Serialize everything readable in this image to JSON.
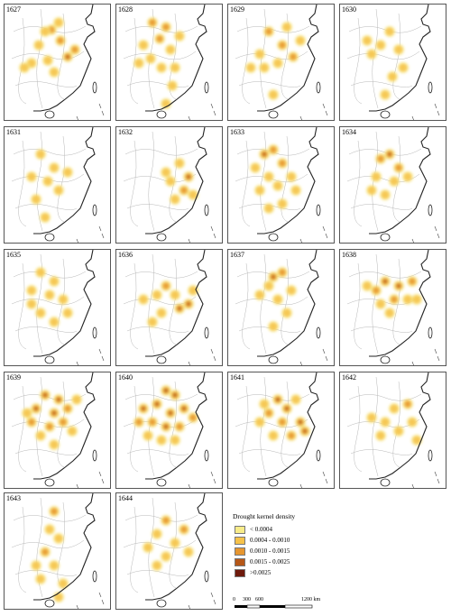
{
  "panels": [
    {
      "year": "1627",
      "hotspots": [
        [
          52,
          28,
          2
        ],
        [
          62,
          40,
          2
        ],
        [
          70,
          58,
          3
        ],
        [
          38,
          45,
          1
        ],
        [
          30,
          65,
          1
        ],
        [
          48,
          62,
          1
        ],
        [
          60,
          20,
          1
        ],
        [
          55,
          75,
          1
        ],
        [
          45,
          30,
          1
        ],
        [
          78,
          50,
          2
        ],
        [
          22,
          70,
          1
        ]
      ]
    },
    {
      "year": "1628",
      "hotspots": [
        [
          40,
          20,
          2
        ],
        [
          55,
          25,
          2
        ],
        [
          48,
          38,
          2
        ],
        [
          30,
          45,
          1
        ],
        [
          60,
          50,
          1
        ],
        [
          70,
          35,
          1
        ],
        [
          50,
          70,
          1
        ],
        [
          38,
          60,
          1
        ],
        [
          65,
          70,
          1
        ],
        [
          25,
          65,
          1
        ],
        [
          55,
          110,
          1
        ],
        [
          62,
          90,
          1
        ]
      ]
    },
    {
      "year": "1629",
      "hotspots": [
        [
          45,
          30,
          2
        ],
        [
          60,
          45,
          2
        ],
        [
          72,
          58,
          2
        ],
        [
          35,
          55,
          1
        ],
        [
          55,
          65,
          1
        ],
        [
          40,
          70,
          1
        ],
        [
          65,
          25,
          1
        ],
        [
          80,
          40,
          1
        ],
        [
          50,
          100,
          1
        ],
        [
          25,
          70,
          1
        ]
      ]
    },
    {
      "year": "1630",
      "hotspots": [
        [
          55,
          30,
          1
        ],
        [
          45,
          45,
          1
        ],
        [
          65,
          50,
          1
        ],
        [
          70,
          70,
          1
        ],
        [
          35,
          55,
          1
        ],
        [
          58,
          80,
          1
        ],
        [
          50,
          100,
          1
        ],
        [
          30,
          40,
          1
        ]
      ]
    },
    {
      "year": "1631",
      "hotspots": [
        [
          40,
          30,
          1
        ],
        [
          55,
          45,
          1
        ],
        [
          30,
          55,
          1
        ],
        [
          48,
          60,
          1
        ],
        [
          60,
          70,
          1
        ],
        [
          35,
          80,
          1
        ],
        [
          45,
          100,
          1
        ],
        [
          70,
          50,
          1
        ]
      ]
    },
    {
      "year": "1632",
      "hotspots": [
        [
          80,
          55,
          3
        ],
        [
          75,
          70,
          2
        ],
        [
          70,
          40,
          1
        ],
        [
          60,
          60,
          1
        ],
        [
          85,
          75,
          1
        ],
        [
          65,
          80,
          1
        ],
        [
          55,
          50,
          1
        ]
      ]
    },
    {
      "year": "1633",
      "hotspots": [
        [
          40,
          30,
          3
        ],
        [
          50,
          25,
          2
        ],
        [
          60,
          40,
          2
        ],
        [
          30,
          45,
          1
        ],
        [
          45,
          55,
          1
        ],
        [
          55,
          65,
          1
        ],
        [
          70,
          55,
          1
        ],
        [
          35,
          70,
          1
        ],
        [
          60,
          85,
          1
        ],
        [
          45,
          90,
          1
        ],
        [
          75,
          70,
          1
        ]
      ]
    },
    {
      "year": "1634",
      "hotspots": [
        [
          55,
          30,
          3
        ],
        [
          45,
          35,
          2
        ],
        [
          65,
          45,
          2
        ],
        [
          40,
          55,
          1
        ],
        [
          60,
          60,
          1
        ],
        [
          50,
          75,
          1
        ],
        [
          75,
          55,
          1
        ],
        [
          35,
          70,
          1
        ]
      ]
    },
    {
      "year": "1635",
      "hotspots": [
        [
          40,
          25,
          1
        ],
        [
          55,
          35,
          1
        ],
        [
          30,
          45,
          1
        ],
        [
          50,
          50,
          1
        ],
        [
          65,
          55,
          1
        ],
        [
          40,
          70,
          1
        ],
        [
          55,
          80,
          1
        ],
        [
          70,
          70,
          1
        ],
        [
          30,
          60,
          1
        ]
      ]
    },
    {
      "year": "1636",
      "hotspots": [
        [
          80,
          60,
          3
        ],
        [
          70,
          65,
          3
        ],
        [
          55,
          40,
          2
        ],
        [
          45,
          50,
          1
        ],
        [
          65,
          50,
          1
        ],
        [
          30,
          55,
          1
        ],
        [
          50,
          70,
          1
        ],
        [
          40,
          80,
          1
        ],
        [
          85,
          45,
          1
        ]
      ]
    },
    {
      "year": "1637",
      "hotspots": [
        [
          50,
          30,
          3
        ],
        [
          60,
          25,
          2
        ],
        [
          45,
          40,
          1
        ],
        [
          70,
          45,
          1
        ],
        [
          55,
          55,
          1
        ],
        [
          35,
          50,
          1
        ],
        [
          65,
          70,
          1
        ],
        [
          50,
          85,
          1
        ]
      ]
    },
    {
      "year": "1638",
      "hotspots": [
        [
          50,
          35,
          3
        ],
        [
          65,
          40,
          3
        ],
        [
          80,
          35,
          2
        ],
        [
          40,
          45,
          2
        ],
        [
          60,
          55,
          2
        ],
        [
          75,
          55,
          1
        ],
        [
          30,
          40,
          1
        ],
        [
          45,
          60,
          1
        ],
        [
          85,
          55,
          1
        ],
        [
          55,
          70,
          1
        ]
      ]
    },
    {
      "year": "1639",
      "hotspots": [
        [
          45,
          25,
          3
        ],
        [
          60,
          30,
          3
        ],
        [
          35,
          40,
          3
        ],
        [
          55,
          45,
          3
        ],
        [
          70,
          40,
          2
        ],
        [
          30,
          55,
          2
        ],
        [
          50,
          60,
          2
        ],
        [
          65,
          55,
          2
        ],
        [
          40,
          70,
          1
        ],
        [
          75,
          65,
          1
        ],
        [
          25,
          45,
          1
        ],
        [
          80,
          30,
          1
        ],
        [
          55,
          80,
          1
        ]
      ]
    },
    {
      "year": "1640",
      "hotspots": [
        [
          55,
          20,
          4
        ],
        [
          65,
          25,
          4
        ],
        [
          45,
          35,
          3
        ],
        [
          30,
          40,
          3
        ],
        [
          60,
          45,
          3
        ],
        [
          75,
          40,
          3
        ],
        [
          40,
          55,
          2
        ],
        [
          55,
          60,
          3
        ],
        [
          70,
          60,
          2
        ],
        [
          25,
          55,
          2
        ],
        [
          85,
          50,
          2
        ],
        [
          35,
          70,
          1
        ],
        [
          50,
          75,
          1
        ],
        [
          65,
          75,
          1
        ]
      ]
    },
    {
      "year": "1641",
      "hotspots": [
        [
          55,
          30,
          4
        ],
        [
          65,
          40,
          3
        ],
        [
          80,
          55,
          4
        ],
        [
          85,
          65,
          3
        ],
        [
          45,
          45,
          2
        ],
        [
          60,
          55,
          2
        ],
        [
          35,
          55,
          1
        ],
        [
          70,
          70,
          2
        ],
        [
          50,
          70,
          1
        ],
        [
          40,
          35,
          1
        ],
        [
          75,
          30,
          1
        ]
      ]
    },
    {
      "year": "1642",
      "hotspots": [
        [
          75,
          35,
          2
        ],
        [
          60,
          40,
          1
        ],
        [
          80,
          55,
          1
        ],
        [
          50,
          55,
          1
        ],
        [
          65,
          65,
          1
        ],
        [
          45,
          70,
          1
        ],
        [
          85,
          75,
          1
        ],
        [
          35,
          50,
          1
        ]
      ]
    },
    {
      "year": "1643",
      "hotspots": [
        [
          55,
          20,
          2
        ],
        [
          50,
          40,
          1
        ],
        [
          60,
          50,
          1
        ],
        [
          45,
          65,
          2
        ],
        [
          35,
          80,
          1
        ],
        [
          55,
          80,
          1
        ],
        [
          40,
          95,
          1
        ],
        [
          65,
          100,
          1
        ],
        [
          60,
          115,
          1
        ]
      ]
    },
    {
      "year": "1644",
      "hotspots": [
        [
          55,
          30,
          2
        ],
        [
          75,
          40,
          2
        ],
        [
          45,
          45,
          1
        ],
        [
          65,
          55,
          1
        ],
        [
          35,
          60,
          1
        ],
        [
          55,
          70,
          1
        ],
        [
          80,
          65,
          1
        ],
        [
          45,
          80,
          1
        ]
      ]
    }
  ],
  "legend": {
    "title": "Drought kernel density",
    "classes": [
      {
        "label": "< 0.0004",
        "color": "#f8ec8a"
      },
      {
        "label": "0.0004 - 0.0010",
        "color": "#f6c24a"
      },
      {
        "label": "0.0010 - 0.0015",
        "color": "#e69630"
      },
      {
        "label": "0.0015 - 0.0025",
        "color": "#b55718"
      },
      {
        "label": ">0.0025",
        "color": "#6e1a0c"
      }
    ]
  },
  "scalebar": {
    "ticks": [
      "0",
      "300",
      "600",
      "1200 km"
    ]
  }
}
